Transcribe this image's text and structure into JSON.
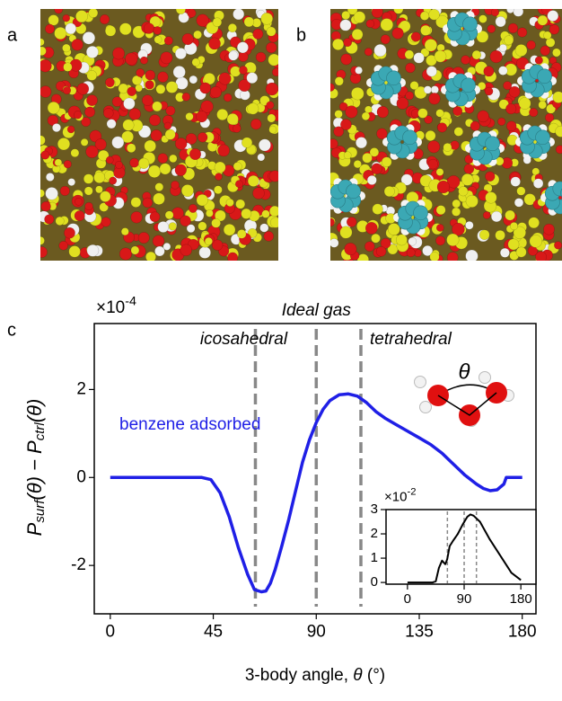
{
  "panel_labels": [
    "a",
    "b",
    "c"
  ],
  "chart_data": [
    {
      "type": "line",
      "y_multiplier": {
        "base": "×10",
        "exponent": "-4"
      },
      "ylabel_parts": [
        "P",
        "surf",
        "(θ) − P",
        "ctrl",
        "(θ)"
      ],
      "xlabel_parts": [
        "3-body angle, ",
        "θ",
        " (°)"
      ],
      "angle_symbol": "θ",
      "xlim": [
        -7,
        186
      ],
      "ylim": [
        -3.1,
        3.5
      ],
      "xticks": [
        0,
        45,
        90,
        135,
        180
      ],
      "yticks": [
        -2,
        0,
        2
      ],
      "reference_lines": [
        {
          "label": "icosahedral",
          "x": 63.4
        },
        {
          "label": "Ideal gas",
          "x": 90
        },
        {
          "label": "tetrahedral",
          "x": 109.5
        }
      ],
      "x": [
        0,
        10,
        20,
        30,
        40,
        44,
        48,
        52,
        56,
        60,
        63,
        66,
        68,
        70,
        72,
        75,
        78,
        81,
        84,
        87,
        90,
        93,
        96,
        100,
        104,
        108,
        112,
        116,
        120,
        125,
        130,
        135,
        140,
        145,
        150,
        155,
        160,
        163,
        166,
        169,
        172,
        173,
        175,
        180
      ],
      "series": [
        {
          "name": "benzene adsorbed",
          "color": "#1f1fe6",
          "values": [
            0,
            0,
            0,
            0,
            0,
            -0.05,
            -0.35,
            -0.9,
            -1.6,
            -2.2,
            -2.55,
            -2.6,
            -2.58,
            -2.4,
            -2.1,
            -1.55,
            -0.95,
            -0.3,
            0.35,
            0.85,
            1.25,
            1.55,
            1.75,
            1.88,
            1.9,
            1.85,
            1.7,
            1.5,
            1.35,
            1.2,
            1.05,
            0.9,
            0.75,
            0.55,
            0.3,
            0.05,
            -0.15,
            -0.25,
            -0.3,
            -0.28,
            -0.15,
            0,
            0,
            0
          ]
        }
      ]
    },
    {
      "type": "line",
      "y_multiplier": {
        "base": "×10",
        "exponent": "-2"
      },
      "xlim": [
        -34,
        204
      ],
      "ylim": [
        -0.07,
        3
      ],
      "xticks": [
        0,
        90,
        180
      ],
      "yticks": [
        0,
        1,
        2,
        3
      ],
      "reference_lines": [
        63.4,
        90,
        109.5
      ],
      "x": [
        0,
        30,
        40,
        45,
        50,
        55,
        60,
        63,
        67,
        72,
        80,
        88,
        95,
        100,
        105,
        115,
        130,
        150,
        165,
        180
      ],
      "series": [
        {
          "color": "#000000",
          "values": [
            0,
            0,
            0,
            0.05,
            0.6,
            0.9,
            0.75,
            0.95,
            1.5,
            1.7,
            2.0,
            2.4,
            2.7,
            2.8,
            2.75,
            2.5,
            1.8,
            1.0,
            0.4,
            0.1
          ]
        }
      ]
    }
  ]
}
